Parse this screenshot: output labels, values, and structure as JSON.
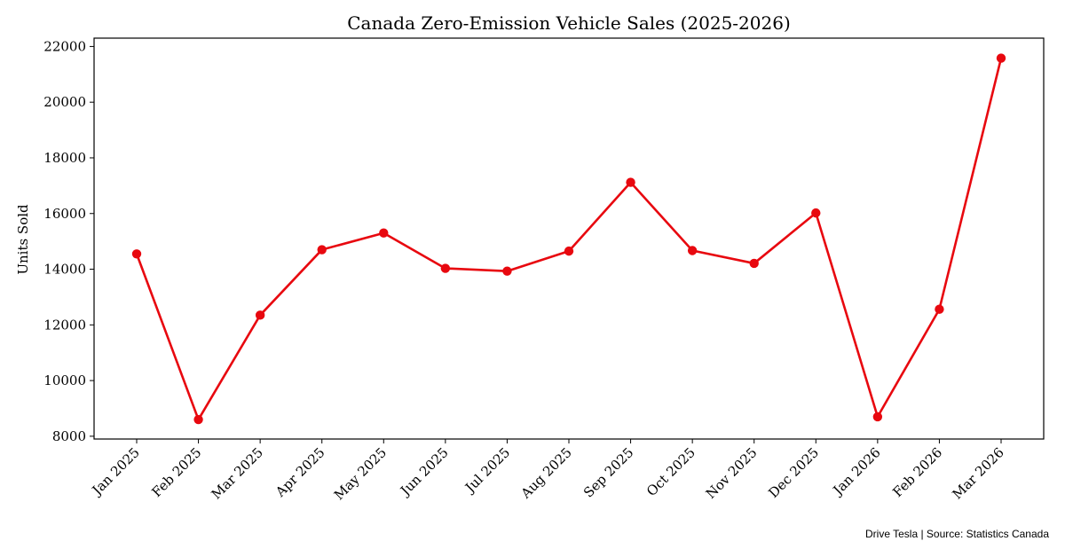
{
  "chart_data": {
    "type": "line",
    "title": "Canada Zero-Emission Vehicle Sales (2025-2026)",
    "xlabel": "",
    "ylabel": "Units Sold",
    "categories": [
      "Jan 2025",
      "Feb 2025",
      "Mar 2025",
      "Apr 2025",
      "May 2025",
      "Jun 2025",
      "Jul 2025",
      "Aug 2025",
      "Sep 2025",
      "Oct 2025",
      "Nov 2025",
      "Dec 2025",
      "Jan 2026",
      "Feb 2026",
      "Mar 2026"
    ],
    "series": [
      {
        "values": [
          14550,
          8600,
          12350,
          14700,
          15300,
          14030,
          13930,
          14650,
          17120,
          14670,
          14210,
          16020,
          8700,
          12560,
          21580
        ],
        "color": "#e8080f"
      }
    ],
    "ylim": [
      7900,
      22300
    ],
    "yticks": [
      8000,
      10000,
      12000,
      14000,
      16000,
      18000,
      20000,
      22000
    ],
    "grid": false,
    "legend": "none"
  },
  "footer": {
    "credit": "Drive Tesla | Source: Statistics Canada"
  }
}
